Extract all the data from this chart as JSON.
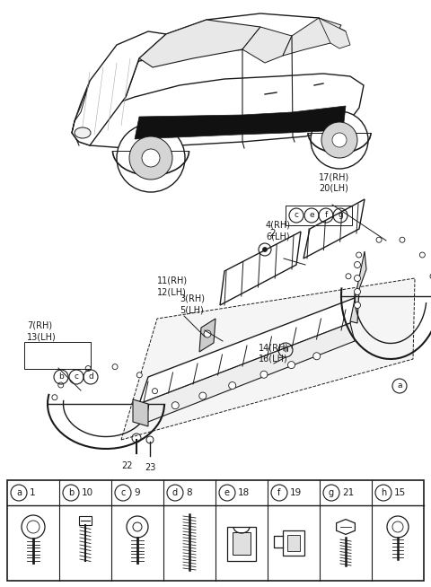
{
  "bg_color": "#ffffff",
  "line_color": "#1a1a1a",
  "gray": "#aaaaaa",
  "lt_gray": "#dddddd",
  "parts_table": {
    "labels": [
      "a",
      "b",
      "c",
      "d",
      "e",
      "f",
      "g",
      "h"
    ],
    "numbers": [
      "1",
      "10",
      "9",
      "8",
      "18",
      "19",
      "21",
      "15"
    ]
  }
}
